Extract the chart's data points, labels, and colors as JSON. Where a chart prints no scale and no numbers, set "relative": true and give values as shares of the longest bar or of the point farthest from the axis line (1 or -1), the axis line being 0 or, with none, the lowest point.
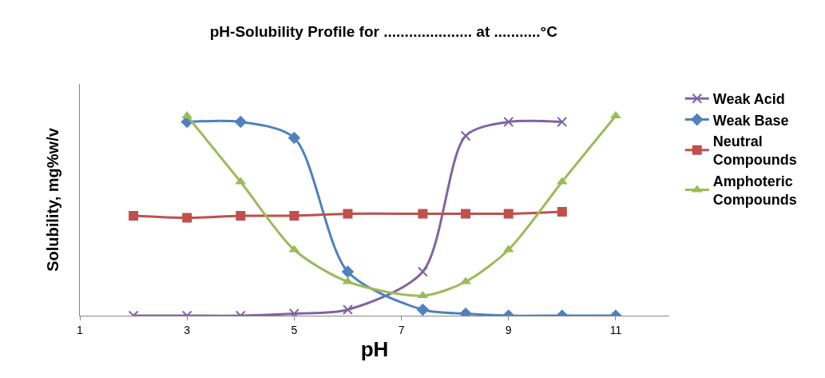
{
  "chart_data": {
    "type": "line",
    "title": "pH-Solubility Profile for ..................... at ...........°C",
    "xlabel": "pH",
    "ylabel": "Solubility, mg%w/v",
    "relative": true,
    "xlim": [
      1,
      12
    ],
    "xticks": [
      1,
      3,
      5,
      7,
      9,
      11
    ],
    "grid": false,
    "legend": "right",
    "line_style": "solid",
    "series": [
      {
        "name": "Weak Acid",
        "color": "#8064a2",
        "marker": "cross",
        "x": [
          2,
          3,
          4,
          5,
          6,
          7.4,
          8.2,
          9,
          10
        ],
        "values": [
          0,
          0,
          0,
          0.01,
          0.03,
          0.22,
          0.9,
          0.97,
          0.97
        ]
      },
      {
        "name": "Weak Base",
        "color": "#4f81bd",
        "marker": "diamond",
        "x": [
          3,
          4,
          5,
          6,
          7.4,
          8.2,
          9,
          10,
          11
        ],
        "values": [
          0.97,
          0.97,
          0.89,
          0.22,
          0.03,
          0.01,
          0,
          0,
          0
        ]
      },
      {
        "name": "Neutral Compounds",
        "color": "#c0504d",
        "marker": "square",
        "x": [
          2,
          3,
          4,
          5,
          6,
          7.4,
          8.2,
          9,
          10
        ],
        "values": [
          0.5,
          0.49,
          0.5,
          0.5,
          0.51,
          0.51,
          0.51,
          0.51,
          0.52
        ]
      },
      {
        "name": "Amphoteric Compounds",
        "color": "#9bbb59",
        "marker": "triangle",
        "x": [
          3,
          4,
          5,
          6,
          7.4,
          8.2,
          9,
          10,
          11
        ],
        "values": [
          1,
          0.67,
          0.33,
          0.17,
          0.1,
          0.17,
          0.33,
          0.67,
          1
        ]
      }
    ]
  }
}
